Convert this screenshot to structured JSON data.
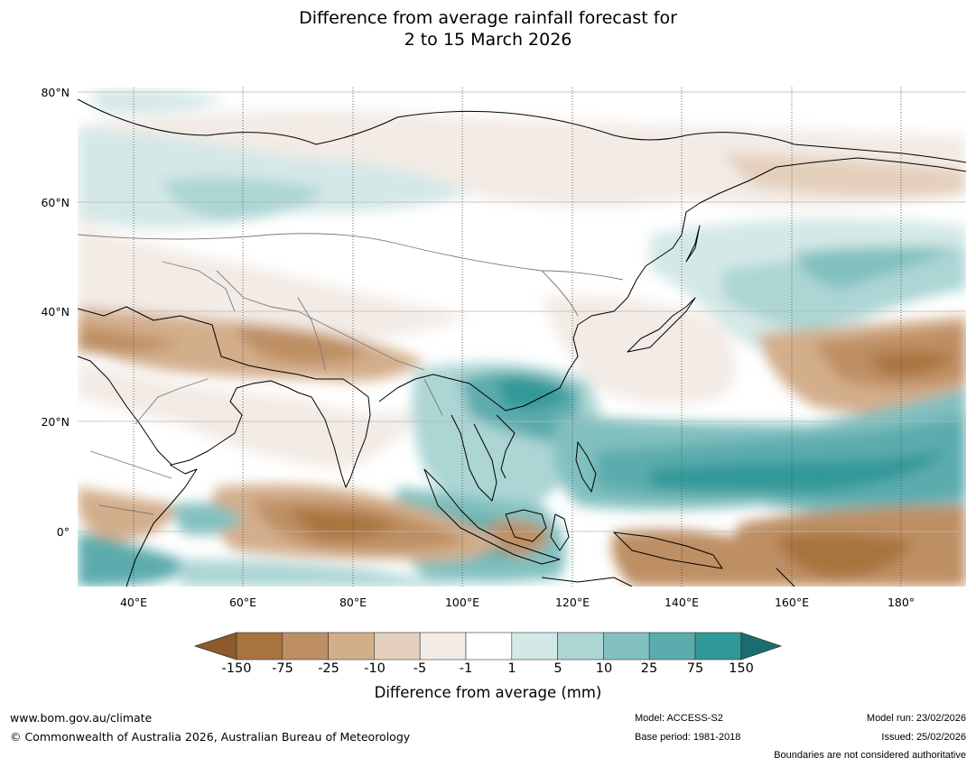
{
  "title": {
    "line1": "Difference from average rainfall forecast for",
    "line2": "2 to 15 March 2026"
  },
  "map": {
    "lat_labels": [
      "80°N",
      "60°N",
      "40°N",
      "20°N",
      "0°"
    ],
    "lon_labels": [
      "40°E",
      "60°E",
      "80°E",
      "100°E",
      "120°E",
      "140°E",
      "160°E",
      "180°"
    ],
    "extent": {
      "lon_min": 30,
      "lon_max": 192,
      "lat_min": -10,
      "lat_max": 81
    }
  },
  "colorbar": {
    "title": "Difference from average (mm)",
    "labels": [
      "-150",
      "-75",
      "-25",
      "-10",
      "-5",
      "-1",
      "1",
      "5",
      "10",
      "25",
      "75",
      "150"
    ],
    "colors": [
      "#8e5a2b",
      "#a8733d",
      "#be8f64",
      "#d3ae8b",
      "#e4cfbc",
      "#f3ebe5",
      "#ffffff",
      "#d4e8e7",
      "#acd5d4",
      "#82c0bf",
      "#5cacad",
      "#319898",
      "#1b6e6e"
    ]
  },
  "footer": {
    "url": "www.bom.gov.au/climate",
    "copyright": "© Commonwealth of Australia 2026, Australian Bureau of Meteorology",
    "model": "Model: ACCESS-S2",
    "base_period": "Base period: 1981-2018",
    "model_run": "Model run: 23/02/2026",
    "issued": "Issued: 25/02/2026",
    "disclaimer": "Boundaries are not considered authoritative"
  }
}
